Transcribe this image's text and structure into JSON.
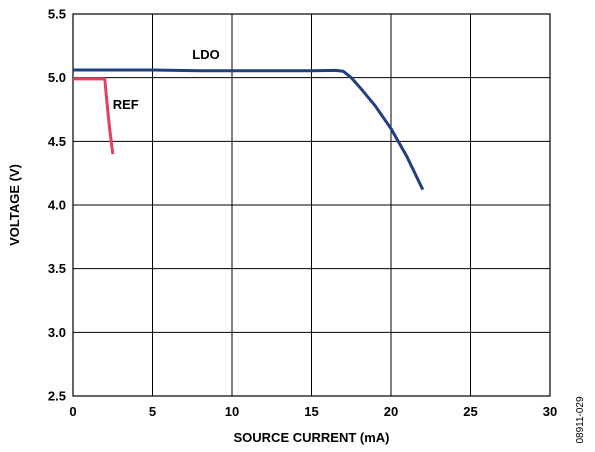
{
  "chart_data": {
    "type": "line",
    "xlabel": "SOURCE CURRENT (mA)",
    "ylabel": "VOLTAGE (V)",
    "xlim": [
      0,
      30
    ],
    "ylim": [
      2.5,
      5.5
    ],
    "x_ticks": [
      0,
      5,
      10,
      15,
      20,
      25,
      30
    ],
    "x_tick_labels": [
      "0",
      "5",
      "10",
      "15",
      "20",
      "25",
      "30"
    ],
    "y_ticks": [
      2.5,
      3.0,
      3.5,
      4.0,
      4.5,
      5.0,
      5.5
    ],
    "y_tick_labels": [
      "2.5",
      "3.0",
      "3.5",
      "4.0",
      "4.5",
      "5.0",
      "5.5"
    ],
    "grid": true,
    "figure_id": "08911-029",
    "series": [
      {
        "name": "LDO",
        "color": "#1f3f7f",
        "points": [
          [
            0,
            5.06
          ],
          [
            5,
            5.06
          ],
          [
            8,
            5.055
          ],
          [
            12,
            5.055
          ],
          [
            15,
            5.055
          ],
          [
            16.5,
            5.057
          ],
          [
            17,
            5.05
          ],
          [
            17.5,
            5.0
          ],
          [
            18,
            4.93
          ],
          [
            19,
            4.78
          ],
          [
            20,
            4.6
          ],
          [
            21,
            4.38
          ],
          [
            22,
            4.12
          ]
        ]
      },
      {
        "name": "REF",
        "color": "#e4405f",
        "points": [
          [
            0,
            4.99
          ],
          [
            2.0,
            4.99
          ],
          [
            2.1,
            4.85
          ],
          [
            2.3,
            4.6
          ],
          [
            2.5,
            4.4
          ]
        ]
      }
    ],
    "annotations": [
      {
        "text": "LDO",
        "series": "LDO",
        "x": 7.5,
        "y": 5.18
      },
      {
        "text": "REF",
        "series": "REF",
        "x": 2.5,
        "y": 4.79
      }
    ]
  }
}
